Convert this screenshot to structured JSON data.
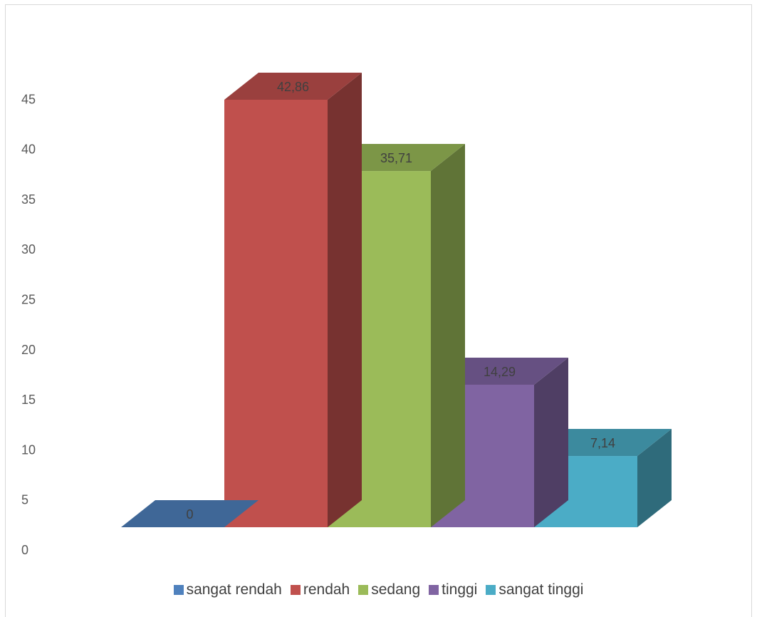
{
  "chart_data": {
    "type": "bar",
    "style": "3d-column",
    "categories": [
      "sangat rendah",
      "rendah",
      "sedang",
      "tinggi",
      "sangat tinggi"
    ],
    "values": [
      0,
      42.86,
      35.71,
      14.29,
      7.14
    ],
    "data_labels": [
      "0",
      "42,86",
      "35,71",
      "14,29",
      "7,14"
    ],
    "colors": [
      "#4f81bd",
      "#c0504d",
      "#9bbb59",
      "#8064a2",
      "#4bacc6"
    ],
    "y_ticks": [
      0,
      5,
      10,
      15,
      20,
      25,
      30,
      35,
      40,
      45
    ],
    "ylim": [
      0,
      45
    ],
    "title": "",
    "xlabel": "",
    "ylabel": "",
    "grid": false,
    "legend_position": "bottom"
  }
}
